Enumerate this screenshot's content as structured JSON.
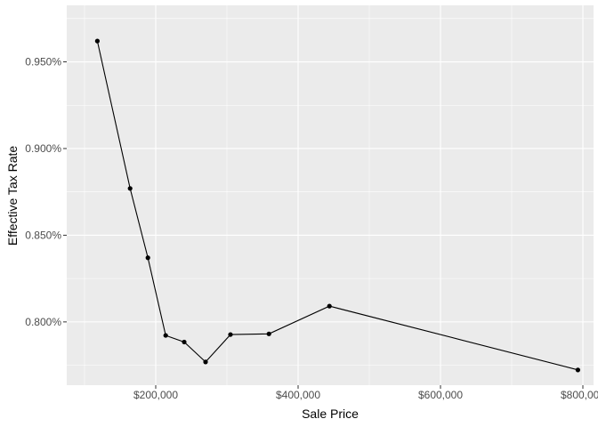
{
  "chart_data": {
    "type": "line",
    "title": "",
    "xlabel": "Sale Price",
    "ylabel": "Effective Tax Rate",
    "x": [
      118000,
      164000,
      189000,
      214000,
      240000,
      270000,
      305000,
      359000,
      444000,
      793000
    ],
    "series": [
      {
        "name": "",
        "values": [
          0.962,
          0.877,
          0.837,
          0.7922,
          0.7884,
          0.7769,
          0.7927,
          0.7931,
          0.8091,
          0.7723
        ]
      }
    ],
    "xlim": [
      75000,
      815000
    ],
    "ylim": [
      0.7635,
      0.9826
    ],
    "x_major_ticks": [
      200000,
      400000,
      600000,
      800000
    ],
    "x_minor_ticks": [
      100000,
      300000,
      500000,
      700000
    ],
    "y_major_ticks": [
      0.8,
      0.85,
      0.9,
      0.95
    ],
    "y_minor_ticks": [
      0.775,
      0.825,
      0.875,
      0.925,
      0.975
    ],
    "x_tick_labels": [
      "$200,000",
      "$400,000",
      "$600,000",
      "$800,000"
    ],
    "y_tick_labels": [
      "0.800%",
      "0.850%",
      "0.900%",
      "0.950%"
    ],
    "grid": true,
    "legend": "none",
    "colors": {
      "panel_background": "#ebebeb",
      "grid": "#ffffff",
      "line": "#000000",
      "points": "#000000",
      "tick_label": "#4d4d4d",
      "axis_title": "#000000"
    }
  }
}
